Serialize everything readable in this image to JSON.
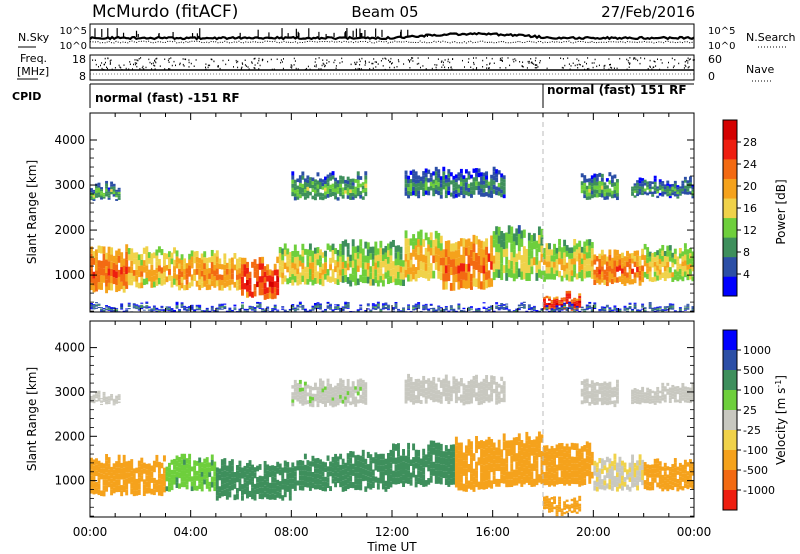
{
  "header": {
    "station": "McMurdo (fitACF)",
    "beam": "Beam 05",
    "date": "27/Feb/2016"
  },
  "top_panels": {
    "nsky_label": "N.Sky",
    "nsky_ticks": [
      "10^5",
      "10^0"
    ],
    "nsearch_label": "N.Search",
    "nsearch_ticks": [
      "10^5",
      "10^0"
    ],
    "freq_label_1": "Freq.",
    "freq_label_2": "[MHz]",
    "freq_ticks": [
      "18",
      "8"
    ],
    "nave_label": "Nave",
    "nave_ticks": [
      "60",
      "0"
    ],
    "cpid_label": "CPID",
    "cpid_segments": [
      {
        "label": "normal (fast) -151 RF",
        "start_hour": 0,
        "end_hour": 18.0
      },
      {
        "label": "normal (fast) 151 RF",
        "start_hour": 18.0,
        "end_hour": 24
      }
    ]
  },
  "colors": {
    "power_scale": [
      "#0000ff",
      "#2c4fa6",
      "#3e8f5c",
      "#6ecf3c",
      "#f0d24a",
      "#f5a21c",
      "#f36a12",
      "#ee1e10",
      "#d40000"
    ],
    "velocity_scale": [
      "#0000ff",
      "#2c4fa6",
      "#3e8f5c",
      "#6ecf3c",
      "#c8c8c0",
      "#f0d24a",
      "#f5a21c",
      "#f36a12",
      "#ee1e10"
    ]
  },
  "chart_data": [
    {
      "type": "heatmap",
      "name": "power",
      "ylabel": "Slant Range [km]",
      "xlabel": "Time UT",
      "x_ticks": [
        "00:00",
        "04:00",
        "08:00",
        "12:00",
        "16:00",
        "20:00",
        "00:00"
      ],
      "xlim": [
        0,
        24
      ],
      "y_ticks": [
        "1000",
        "2000",
        "3000",
        "4000"
      ],
      "ylim": [
        180,
        4600
      ],
      "colorbar_label": "Power [dB]",
      "colorbar_ticks": [
        "4",
        "8",
        "12",
        "16",
        "20",
        "24",
        "28"
      ],
      "colorbar_range": [
        0,
        32
      ],
      "bands": [
        {
          "start_hour": 0.0,
          "end_hour": 1.5,
          "low_km": 650,
          "high_km": 1600,
          "value": 24
        },
        {
          "start_hour": 1.5,
          "end_hour": 3.5,
          "low_km": 750,
          "high_km": 1550,
          "value": 20
        },
        {
          "start_hour": 3.5,
          "end_hour": 6.0,
          "low_km": 700,
          "high_km": 1450,
          "value": 22
        },
        {
          "start_hour": 6.0,
          "end_hour": 7.5,
          "low_km": 500,
          "high_km": 1300,
          "value": 28
        },
        {
          "start_hour": 7.5,
          "end_hour": 10.0,
          "low_km": 800,
          "high_km": 1600,
          "value": 18
        },
        {
          "start_hour": 10.0,
          "end_hour": 12.5,
          "low_km": 800,
          "high_km": 1700,
          "value": 16
        },
        {
          "start_hour": 12.5,
          "end_hour": 14.0,
          "low_km": 900,
          "high_km": 1900,
          "value": 20
        },
        {
          "start_hour": 14.0,
          "end_hour": 16.0,
          "low_km": 700,
          "high_km": 1800,
          "value": 24
        },
        {
          "start_hour": 16.0,
          "end_hour": 18.0,
          "low_km": 900,
          "high_km": 2000,
          "value": 16
        },
        {
          "start_hour": 18.0,
          "end_hour": 20.0,
          "low_km": 900,
          "high_km": 1700,
          "value": 18
        },
        {
          "start_hour": 20.0,
          "end_hour": 22.0,
          "low_km": 800,
          "high_km": 1500,
          "value": 24
        },
        {
          "start_hour": 22.0,
          "end_hour": 24.0,
          "low_km": 900,
          "high_km": 1600,
          "value": 18
        },
        {
          "start_hour": 0.0,
          "end_hour": 1.2,
          "low_km": 2700,
          "high_km": 3000,
          "value": 12
        },
        {
          "start_hour": 8.0,
          "end_hour": 11.0,
          "low_km": 2700,
          "high_km": 3200,
          "value": 12
        },
        {
          "start_hour": 12.5,
          "end_hour": 16.5,
          "low_km": 2750,
          "high_km": 3300,
          "value": 10
        },
        {
          "start_hour": 19.5,
          "end_hour": 21.0,
          "low_km": 2700,
          "high_km": 3200,
          "value": 12
        },
        {
          "start_hour": 21.5,
          "end_hour": 24.0,
          "low_km": 2750,
          "high_km": 3100,
          "value": 10
        },
        {
          "start_hour": 18.0,
          "end_hour": 19.5,
          "low_km": 250,
          "high_km": 550,
          "value": 28
        },
        {
          "start_hour": 0.0,
          "end_hour": 24.0,
          "low_km": 200,
          "high_km": 300,
          "value": 8
        }
      ]
    },
    {
      "type": "heatmap",
      "name": "velocity",
      "ylabel": "Slant Range [km]",
      "xlabel": "Time UT",
      "x_ticks": [
        "00:00",
        "04:00",
        "08:00",
        "12:00",
        "16:00",
        "20:00",
        "00:00"
      ],
      "xlim": [
        0,
        24
      ],
      "y_ticks": [
        "1000",
        "2000",
        "3000",
        "4000"
      ],
      "ylim": [
        180,
        4600
      ],
      "colorbar_label": "Velocity [m s^-1]",
      "colorbar_ticks": [
        "1000",
        "500",
        "100",
        "25",
        "-25",
        "-100",
        "-500",
        "-1000"
      ],
      "bands": [
        {
          "start_hour": 0.0,
          "end_hour": 3.0,
          "low_km": 700,
          "high_km": 1500,
          "value": -150
        },
        {
          "start_hour": 3.0,
          "end_hour": 5.0,
          "low_km": 800,
          "high_km": 1500,
          "value": 80
        },
        {
          "start_hour": 5.0,
          "end_hour": 8.0,
          "low_km": 600,
          "high_km": 1400,
          "value": 300
        },
        {
          "start_hour": 8.0,
          "end_hour": 10.0,
          "low_km": 800,
          "high_km": 1500,
          "value": 150
        },
        {
          "start_hour": 10.0,
          "end_hour": 12.0,
          "low_km": 800,
          "high_km": 1600,
          "value": 200
        },
        {
          "start_hour": 12.0,
          "end_hour": 14.5,
          "low_km": 900,
          "high_km": 1800,
          "value": 250
        },
        {
          "start_hour": 14.5,
          "end_hour": 16.0,
          "low_km": 800,
          "high_km": 1900,
          "value": -150
        },
        {
          "start_hour": 16.0,
          "end_hour": 18.0,
          "low_km": 900,
          "high_km": 2000,
          "value": -200
        },
        {
          "start_hour": 18.0,
          "end_hour": 20.0,
          "low_km": 900,
          "high_km": 1800,
          "value": -150
        },
        {
          "start_hour": 20.0,
          "end_hour": 22.0,
          "low_km": 800,
          "high_km": 1500,
          "value": -20
        },
        {
          "start_hour": 22.0,
          "end_hour": 24.0,
          "low_km": 800,
          "high_km": 1400,
          "value": -150
        },
        {
          "start_hour": 0.0,
          "end_hour": 1.2,
          "low_km": 2750,
          "high_km": 2950,
          "value": 0
        },
        {
          "start_hour": 8.0,
          "end_hour": 11.0,
          "low_km": 2700,
          "high_km": 3200,
          "value": 10
        },
        {
          "start_hour": 12.5,
          "end_hour": 16.5,
          "low_km": 2750,
          "high_km": 3300,
          "value": 0
        },
        {
          "start_hour": 19.5,
          "end_hour": 21.0,
          "low_km": 2700,
          "high_km": 3200,
          "value": 0
        },
        {
          "start_hour": 21.5,
          "end_hour": 24.0,
          "low_km": 2750,
          "high_km": 3100,
          "value": 5
        },
        {
          "start_hour": 18.0,
          "end_hour": 19.5,
          "low_km": 250,
          "high_km": 550,
          "value": -150
        }
      ]
    }
  ]
}
